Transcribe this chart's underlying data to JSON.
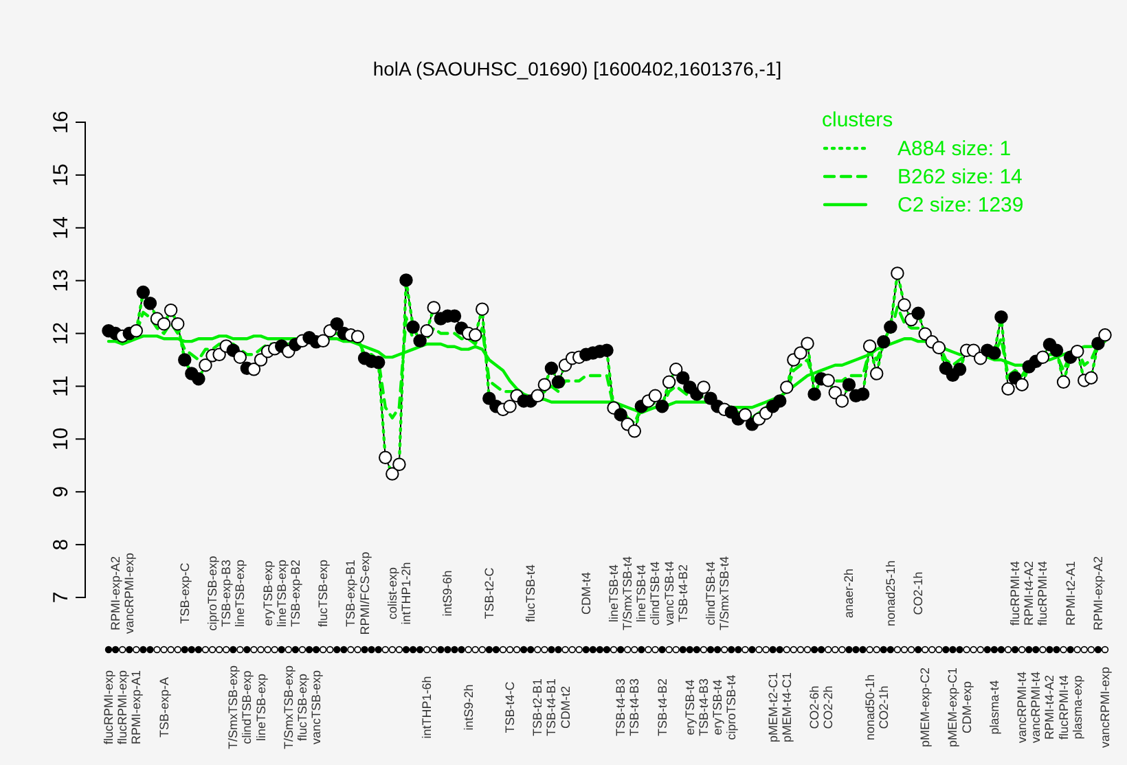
{
  "chart_data": {
    "type": "line",
    "title": "holA (SAOUHSC_01690) [1600402,1601376,-1]",
    "legend_title": "clusters",
    "legend": "top right",
    "grid": false,
    "ylim": [
      7,
      16
    ],
    "yticks": [
      7,
      8,
      9,
      10,
      11,
      12,
      13,
      14,
      15,
      16
    ],
    "categories": [
      "flucRPMI-exp",
      "RPMI-exp-A2",
      "flucRPMI-exp",
      "vancRPMI-exp",
      "RPMI-exp-A1",
      null,
      null,
      null,
      "TSB-exp-A",
      null,
      null,
      "TSB-exp-C",
      null,
      null,
      null,
      "ciproTSB-exp",
      null,
      "TSB-exp-B3",
      "T/SmxTSB-exp",
      "lineTSB-exp",
      "clindTSB-exp",
      null,
      "lineTSB-exp",
      "eryTSB-exp",
      null,
      "lineTSB-exp",
      "T/SmxTSB-exp",
      "TSB-exp-B2",
      "flucTSB-exp",
      null,
      "vancTSB-exp",
      "flucTSB-exp",
      null,
      null,
      null,
      "TSB-exp-B1",
      null,
      "RPMI/FCS-exp",
      null,
      null,
      null,
      "colist-exp",
      null,
      "intTHP1-2h",
      null,
      null,
      "intTHP1-6h",
      null,
      null,
      "intS9-6h",
      null,
      null,
      "intS9-2h",
      null,
      null,
      "TSB-t2-C",
      null,
      null,
      "TSB-t4-C",
      null,
      null,
      "flucTSB-t4",
      "TSB-t2-B1",
      null,
      "TSB-t4-B1",
      null,
      "CDM-t2",
      null,
      null,
      "CDM-t4",
      null,
      null,
      null,
      "lineTSB-t4",
      "TSB-t4-B3",
      "T/SmxTSB-t4",
      "TSB-t4-B3",
      "lineTSB-t4",
      null,
      "clindTSB-t4",
      "TSB-t4-B2",
      "vancTSB-t4",
      null,
      "TSB-t4-B2",
      "eryTSB-t4",
      null,
      "TSB-t4-B3",
      "clindTSB-t4",
      "eryTSB-t4",
      "T/SmxTSB-t4",
      "ciproTSB-t4",
      null,
      null,
      null,
      null,
      null,
      "pMEM-t2-C1",
      null,
      "pMEM-t4-C1",
      null,
      null,
      null,
      "CO2-6h",
      null,
      "CO2-2h",
      null,
      null,
      "anaer-2h",
      null,
      null,
      "nonad50-1h",
      null,
      "CO2-1h",
      "nonad25-1h",
      null,
      null,
      null,
      "CO2-1h",
      "pMEM-exp-C2",
      null,
      null,
      null,
      "pMEM-exp-C1",
      null,
      "CDM-exp",
      null,
      null,
      null,
      "plasma-t4",
      null,
      null,
      "flucRPMI-t4",
      "vancRPMI-t4",
      "RPMI-t4-A2",
      "vancRPMI-t4",
      "flucRPMI-t4",
      "RPMI-t4-A2",
      null,
      "flucRPMI-t4",
      "RPMI-t2-A1",
      "plasma-exp",
      null,
      null,
      "RPMI-exp-A2",
      "vancRPMI-exp"
    ],
    "series": [
      {
        "color": "#000000",
        "marker": "circle",
        "line_style": "solid",
        "values": [
          12.05,
          12.0,
          11.95,
          12.0,
          12.05,
          12.78,
          12.57,
          12.28,
          12.18,
          12.44,
          12.18,
          11.5,
          11.24,
          11.14,
          11.4,
          11.58,
          11.6,
          11.76,
          11.68,
          11.55,
          11.34,
          11.32,
          11.5,
          11.66,
          11.71,
          11.76,
          11.66,
          11.79,
          11.86,
          11.92,
          11.84,
          11.86,
          12.05,
          12.18,
          12.0,
          11.97,
          11.94,
          11.53,
          11.47,
          11.45,
          9.65,
          9.34,
          9.52,
          13.01,
          12.12,
          11.86,
          12.05,
          12.49,
          12.28,
          12.33,
          12.33,
          12.1,
          12.0,
          11.97,
          12.46,
          10.77,
          10.62,
          10.56,
          10.62,
          10.82,
          10.72,
          10.72,
          10.82,
          11.03,
          11.34,
          11.08,
          11.4,
          11.53,
          11.55,
          11.6,
          11.63,
          11.66,
          11.68,
          10.59,
          10.46,
          10.28,
          10.15,
          10.62,
          10.72,
          10.82,
          10.62,
          11.08,
          11.32,
          11.16,
          10.98,
          10.85,
          10.98,
          10.77,
          10.62,
          10.56,
          10.51,
          10.38,
          10.46,
          10.28,
          10.38,
          10.49,
          10.62,
          10.72,
          10.98,
          11.5,
          11.63,
          11.81,
          10.85,
          11.14,
          11.11,
          10.88,
          10.72,
          11.03,
          10.82,
          10.85,
          11.76,
          11.24,
          11.84,
          12.12,
          13.14,
          12.54,
          12.26,
          12.38,
          11.99,
          11.84,
          11.73,
          11.34,
          11.21,
          11.32,
          11.68,
          11.68,
          11.53,
          11.68,
          11.63,
          12.31,
          10.95,
          11.16,
          11.03,
          11.37,
          11.47,
          11.55,
          11.79,
          11.68,
          11.08,
          11.55,
          11.66,
          11.11,
          11.16,
          11.81,
          11.97
        ],
        "colors": [
          "#000000",
          "#000000",
          "#ffffff",
          "#000000",
          "#ffffff",
          "#000000",
          "#000000",
          "#ffffff",
          "#ffffff",
          "#ffffff",
          "#ffffff",
          "#000000",
          "#000000",
          "#000000",
          "#ffffff",
          "#ffffff",
          "#ffffff",
          "#ffffff",
          "#000000",
          "#ffffff",
          "#000000",
          "#ffffff",
          "#ffffff",
          "#ffffff",
          "#ffffff",
          "#000000",
          "#ffffff",
          "#000000",
          "#ffffff",
          "#000000",
          "#000000",
          "#ffffff",
          "#ffffff",
          "#000000",
          "#000000",
          "#ffffff",
          "#ffffff",
          "#000000",
          "#000000",
          "#000000",
          "#ffffff",
          "#ffffff",
          "#ffffff",
          "#000000",
          "#000000",
          "#000000",
          "#ffffff",
          "#ffffff",
          "#000000",
          "#000000",
          "#000000",
          "#000000",
          "#ffffff",
          "#ffffff",
          "#ffffff",
          "#000000",
          "#000000",
          "#ffffff",
          "#ffffff",
          "#ffffff",
          "#000000",
          "#000000",
          "#ffffff",
          "#ffffff",
          "#000000",
          "#000000",
          "#ffffff",
          "#ffffff",
          "#ffffff",
          "#000000",
          "#000000",
          "#000000",
          "#000000",
          "#ffffff",
          "#000000",
          "#ffffff",
          "#ffffff",
          "#000000",
          "#ffffff",
          "#ffffff",
          "#000000",
          "#ffffff",
          "#ffffff",
          "#000000",
          "#000000",
          "#000000",
          "#ffffff",
          "#000000",
          "#000000",
          "#ffffff",
          "#000000",
          "#000000",
          "#ffffff",
          "#000000",
          "#ffffff",
          "#ffffff",
          "#000000",
          "#000000",
          "#ffffff",
          "#ffffff",
          "#ffffff",
          "#ffffff",
          "#000000",
          "#000000",
          "#ffffff",
          "#ffffff",
          "#ffffff",
          "#000000",
          "#000000",
          "#000000",
          "#ffffff",
          "#ffffff",
          "#000000",
          "#000000",
          "#ffffff",
          "#ffffff",
          "#ffffff",
          "#000000",
          "#ffffff",
          "#ffffff",
          "#ffffff",
          "#000000",
          "#000000",
          "#000000",
          "#ffffff",
          "#ffffff",
          "#ffffff",
          "#000000",
          "#000000",
          "#000000",
          "#ffffff",
          "#000000",
          "#ffffff",
          "#000000",
          "#000000",
          "#ffffff",
          "#000000",
          "#000000",
          "#ffffff",
          "#000000",
          "#ffffff",
          "#ffffff",
          "#ffffff",
          "#000000",
          "#ffffff"
        ]
      },
      {
        "name": "A884 size: 1",
        "color": "#00ee00",
        "line_style": "dotted",
        "values": [
          12.05,
          12.0,
          11.95,
          12.0,
          12.05,
          12.78,
          12.57,
          12.28,
          12.18,
          12.44,
          12.18,
          11.5,
          11.24,
          11.14,
          11.4,
          11.58,
          11.6,
          11.76,
          11.68,
          11.55,
          11.34,
          11.32,
          11.5,
          11.66,
          11.71,
          11.76,
          11.66,
          11.79,
          11.86,
          11.92,
          11.84,
          11.86,
          12.05,
          12.18,
          12.0,
          11.97,
          11.94,
          11.53,
          11.47,
          11.45,
          9.65,
          9.34,
          9.52,
          13.01,
          12.12,
          11.86,
          12.05,
          12.49,
          12.28,
          12.33,
          12.33,
          12.1,
          12.0,
          11.97,
          12.46,
          10.77,
          10.62,
          10.56,
          10.62,
          10.82,
          10.72,
          10.72,
          10.82,
          11.03,
          11.34,
          11.08,
          11.4,
          11.53,
          11.55,
          11.6,
          11.63,
          11.66,
          11.68,
          10.59,
          10.46,
          10.28,
          10.15,
          10.62,
          10.72,
          10.82,
          10.62,
          11.08,
          11.32,
          11.16,
          10.98,
          10.85,
          10.98,
          10.77,
          10.62,
          10.56,
          10.51,
          10.38,
          10.46,
          10.28,
          10.38,
          10.49,
          10.62,
          10.72,
          10.98,
          11.5,
          11.63,
          11.81,
          10.85,
          11.14,
          11.11,
          10.88,
          10.72,
          11.03,
          10.82,
          10.85,
          11.76,
          11.24,
          11.84,
          12.12,
          13.14,
          12.54,
          12.26,
          12.38,
          11.99,
          11.84,
          11.73,
          11.34,
          11.21,
          11.32,
          11.68,
          11.68,
          11.53,
          11.68,
          11.63,
          12.31,
          10.95,
          11.16,
          11.03,
          11.37,
          11.47,
          11.55,
          11.79,
          11.68,
          11.08,
          11.55,
          11.66,
          11.11,
          11.16,
          11.81,
          11.97
        ]
      },
      {
        "name": "B262 size: 14",
        "color": "#00ee00",
        "line_style": "dashed",
        "values": [
          12.0,
          11.9,
          11.9,
          11.9,
          12.0,
          12.4,
          12.3,
          12.1,
          12.0,
          12.2,
          12.0,
          11.7,
          11.6,
          11.5,
          11.7,
          11.7,
          11.8,
          11.8,
          11.8,
          11.7,
          11.6,
          11.6,
          11.7,
          11.8,
          11.8,
          11.8,
          11.8,
          11.8,
          11.9,
          11.9,
          11.9,
          11.9,
          12.0,
          12.0,
          11.9,
          11.9,
          11.9,
          11.6,
          11.6,
          11.5,
          10.6,
          10.4,
          10.6,
          12.3,
          11.9,
          11.8,
          11.9,
          12.1,
          12.0,
          12.0,
          12.0,
          11.9,
          11.9,
          11.8,
          12.1,
          11.1,
          11.0,
          10.9,
          10.9,
          10.9,
          10.8,
          10.8,
          10.8,
          10.9,
          11.0,
          10.9,
          11.1,
          11.1,
          11.1,
          11.2,
          11.2,
          11.2,
          11.2,
          10.6,
          10.6,
          10.4,
          10.3,
          10.6,
          10.6,
          10.7,
          10.6,
          10.9,
          11.0,
          10.9,
          10.8,
          10.8,
          10.8,
          10.7,
          10.7,
          10.6,
          10.6,
          10.5,
          10.5,
          10.4,
          10.5,
          10.6,
          10.7,
          10.8,
          10.9,
          11.3,
          11.4,
          11.5,
          11.1,
          11.2,
          11.2,
          11.1,
          11.1,
          11.2,
          11.2,
          11.2,
          11.7,
          11.5,
          11.8,
          12.0,
          12.5,
          12.2,
          12.1,
          12.1,
          11.9,
          11.8,
          11.8,
          11.5,
          11.4,
          11.5,
          11.6,
          11.6,
          11.6,
          11.6,
          11.6,
          11.9,
          11.2,
          11.3,
          11.2,
          11.4,
          11.5,
          11.5,
          11.6,
          11.6,
          11.3,
          11.6,
          11.7,
          11.4,
          11.5,
          11.8,
          11.9
        ]
      },
      {
        "name": "C2 size: 1239",
        "color": "#00ee00",
        "line_style": "solid",
        "values": [
          11.85,
          11.85,
          11.8,
          11.85,
          11.9,
          11.95,
          11.95,
          11.95,
          11.9,
          11.9,
          11.9,
          11.85,
          11.85,
          11.9,
          11.9,
          11.9,
          11.95,
          11.95,
          11.9,
          11.9,
          11.9,
          11.95,
          11.95,
          11.9,
          11.9,
          11.9,
          11.9,
          11.9,
          11.9,
          11.9,
          11.85,
          11.85,
          11.9,
          11.9,
          11.85,
          11.85,
          11.8,
          11.75,
          11.7,
          11.65,
          11.55,
          11.55,
          11.6,
          11.65,
          11.7,
          11.75,
          11.8,
          11.8,
          11.8,
          11.75,
          11.75,
          11.7,
          11.7,
          11.75,
          11.7,
          11.5,
          11.4,
          11.3,
          11.1,
          10.95,
          10.85,
          10.8,
          10.75,
          10.75,
          10.7,
          10.7,
          10.7,
          10.7,
          10.7,
          10.7,
          10.7,
          10.7,
          10.7,
          10.7,
          10.65,
          10.6,
          10.55,
          10.5,
          10.55,
          10.6,
          10.6,
          10.65,
          10.7,
          10.7,
          10.7,
          10.7,
          10.7,
          10.7,
          10.65,
          10.65,
          10.6,
          10.6,
          10.6,
          10.6,
          10.65,
          10.7,
          10.75,
          10.8,
          10.9,
          11.0,
          11.1,
          11.2,
          11.25,
          11.3,
          11.35,
          11.4,
          11.4,
          11.45,
          11.5,
          11.55,
          11.6,
          11.7,
          11.75,
          11.8,
          11.85,
          11.9,
          11.9,
          11.85,
          11.85,
          11.8,
          11.8,
          11.7,
          11.65,
          11.6,
          11.6,
          11.6,
          11.6,
          11.55,
          11.5,
          11.5,
          11.45,
          11.4,
          11.4,
          11.4,
          11.45,
          11.5,
          11.5,
          11.55,
          11.6,
          11.65,
          11.7,
          11.75,
          11.75,
          11.8,
          11.85
        ]
      }
    ]
  }
}
